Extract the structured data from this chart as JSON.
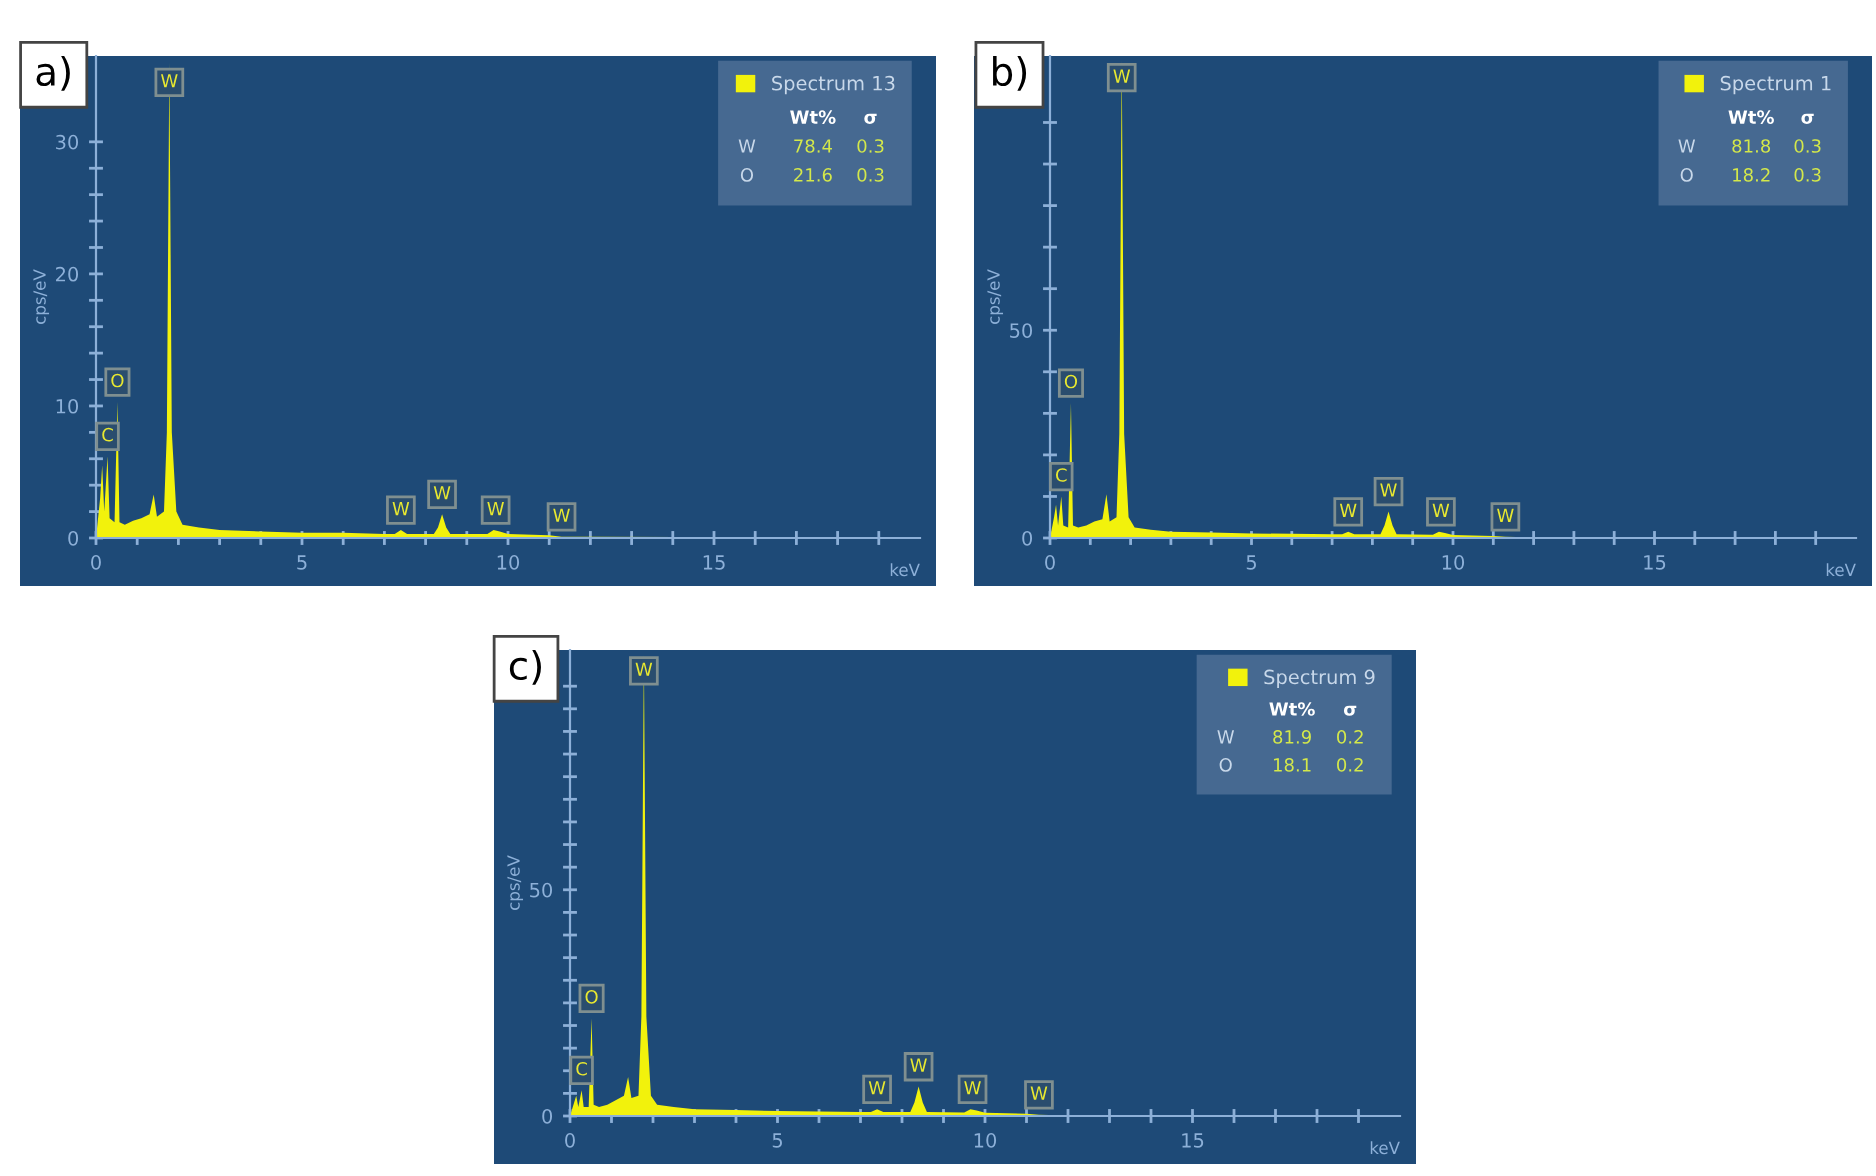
{
  "chart_data": [
    {
      "type": "area",
      "title": "a)",
      "xlabel": "keV",
      "ylabel": "cps/eV",
      "xlim": [
        0,
        20
      ],
      "ylim": [
        0,
        36.5
      ],
      "legend": "top right",
      "tick_labels": "xy",
      "xticks": [
        0,
        {
          "value": 1,
          "label": null
        },
        {
          "value": 2,
          "label": null
        },
        {
          "value": 3,
          "label": null
        },
        {
          "value": 4,
          "label": null
        },
        5,
        {
          "value": 6,
          "label": null
        },
        {
          "value": 7,
          "label": null
        },
        {
          "value": 8,
          "label": null
        },
        {
          "value": 9,
          "label": null
        },
        10,
        {
          "value": 11,
          "label": null
        },
        {
          "value": 12,
          "label": null
        },
        {
          "value": 13,
          "label": null
        },
        {
          "value": 14,
          "label": null
        },
        15,
        {
          "value": 16,
          "label": null
        },
        {
          "value": 17,
          "label": null
        },
        {
          "value": 18,
          "label": null
        },
        {
          "value": 19,
          "label": null
        }
      ],
      "yticks": [
        0,
        {
          "value": 2,
          "label": null
        },
        {
          "value": 4,
          "label": null
        },
        {
          "value": 6,
          "label": null
        },
        {
          "value": 8,
          "label": null
        },
        10,
        {
          "value": 12,
          "label": null
        },
        {
          "value": 14,
          "label": null
        },
        {
          "value": 16,
          "label": null
        },
        {
          "value": 18,
          "label": null
        },
        20,
        {
          "value": 22,
          "label": null
        },
        {
          "value": 24,
          "label": null
        },
        {
          "value": 26,
          "label": null
        },
        {
          "value": 28,
          "label": null
        },
        30
      ],
      "series": [
        {
          "name": "Spectrum 13",
          "color": "#f2f20c",
          "x": [
            0,
            0.1,
            0.15,
            0.2,
            0.28,
            0.33,
            0.45,
            0.52,
            0.57,
            0.7,
            0.9,
            1.1,
            1.3,
            1.4,
            1.48,
            1.65,
            1.72,
            1.78,
            1.84,
            1.95,
            2.1,
            2.5,
            3,
            4,
            5,
            6,
            7,
            7.25,
            7.4,
            7.55,
            8.2,
            8.3,
            8.4,
            8.5,
            8.6,
            9.5,
            9.65,
            9.8,
            10,
            11,
            11.3,
            12,
            20
          ],
          "values": [
            0,
            3,
            5.5,
            2,
            6.2,
            1.5,
            1.2,
            10.3,
            1.2,
            1.0,
            1.3,
            1.5,
            1.8,
            3.3,
            1.6,
            2,
            8,
            36,
            8,
            2,
            1,
            0.8,
            0.6,
            0.5,
            0.4,
            0.4,
            0.3,
            0.3,
            0.6,
            0.3,
            0.3,
            0.8,
            1.8,
            0.8,
            0.3,
            0.3,
            0.6,
            0.5,
            0.3,
            0.2,
            0.1,
            0.1,
            0
          ]
        }
      ],
      "annotations": [
        "Wt%",
        "σ",
        "W",
        "78.4",
        "0.3",
        "O",
        "21.6",
        "0.3",
        {
          "text": "C",
          "x": 0.28,
          "y": 6.2
        },
        {
          "text": "O",
          "x": 0.52,
          "y": 10.3
        },
        {
          "text": "W",
          "x": 1.78,
          "y": 33
        },
        {
          "text": "W",
          "x": 7.4,
          "y": 0.6
        },
        {
          "text": "W",
          "x": 8.4,
          "y": 1.8
        },
        {
          "text": "W",
          "x": 9.7,
          "y": 0.6
        },
        {
          "text": "W",
          "x": 11.3,
          "y": 0.1
        }
      ]
    },
    {
      "type": "area",
      "title": "b)",
      "xlabel": "keV",
      "ylabel": "cps/eV",
      "xlim": [
        0,
        20
      ],
      "ylim": [
        0,
        116
      ],
      "legend": "top right",
      "tick_labels": "xy",
      "xticks": [
        0,
        {
          "value": 1,
          "label": null
        },
        {
          "value": 2,
          "label": null
        },
        {
          "value": 3,
          "label": null
        },
        {
          "value": 4,
          "label": null
        },
        5,
        {
          "value": 6,
          "label": null
        },
        {
          "value": 7,
          "label": null
        },
        {
          "value": 8,
          "label": null
        },
        {
          "value": 9,
          "label": null
        },
        10,
        {
          "value": 11,
          "label": null
        },
        {
          "value": 12,
          "label": null
        },
        {
          "value": 13,
          "label": null
        },
        {
          "value": 14,
          "label": null
        },
        15,
        {
          "value": 16,
          "label": null
        },
        {
          "value": 17,
          "label": null
        },
        {
          "value": 18,
          "label": null
        },
        {
          "value": 19,
          "label": null
        }
      ],
      "yticks": [
        0,
        {
          "value": 10,
          "label": null
        },
        {
          "value": 20,
          "label": null
        },
        {
          "value": 30,
          "label": null
        },
        {
          "value": 40,
          "label": null
        },
        50,
        {
          "value": 60,
          "label": null
        },
        {
          "value": 70,
          "label": null
        },
        {
          "value": 80,
          "label": null
        },
        {
          "value": 90,
          "label": null
        },
        {
          "value": 100,
          "label": null
        }
      ],
      "series": [
        {
          "name": "Spectrum 1",
          "color": "#f2f20c",
          "x": [
            0,
            0.1,
            0.15,
            0.2,
            0.28,
            0.33,
            0.45,
            0.52,
            0.57,
            0.7,
            0.9,
            1.1,
            1.3,
            1.4,
            1.48,
            1.65,
            1.72,
            1.78,
            1.84,
            1.95,
            2.1,
            2.5,
            3,
            4,
            5,
            6,
            7,
            7.25,
            7.4,
            7.55,
            8.2,
            8.3,
            8.4,
            8.5,
            8.6,
            9.5,
            9.65,
            9.8,
            10,
            11,
            11.3,
            12,
            20
          ],
          "values": [
            0,
            5,
            8,
            3,
            10,
            3,
            2.5,
            32.5,
            3,
            2.5,
            3,
            4,
            4.5,
            10.5,
            4,
            5,
            25,
            115,
            25,
            5,
            2.5,
            2,
            1.5,
            1.3,
            1.1,
            1,
            0.9,
            0.9,
            1.5,
            0.9,
            0.9,
            3,
            6.4,
            3,
            0.9,
            0.8,
            1.5,
            1.2,
            0.7,
            0.5,
            0.3,
            0.1,
            0
          ]
        }
      ],
      "annotations": [
        "Wt%",
        "σ",
        "W",
        "81.8",
        "0.3",
        "O",
        "18.2",
        "0.3",
        {
          "text": "C",
          "x": 0.28,
          "y": 10
        },
        {
          "text": "O",
          "x": 0.52,
          "y": 32.5
        },
        {
          "text": "W",
          "x": 1.78,
          "y": 106
        },
        {
          "text": "W",
          "x": 7.4,
          "y": 1.5
        },
        {
          "text": "W",
          "x": 8.4,
          "y": 6.4
        },
        {
          "text": "W",
          "x": 9.7,
          "y": 1.5
        },
        {
          "text": "W",
          "x": 11.3,
          "y": 0.3
        }
      ]
    },
    {
      "type": "area",
      "title": "c)",
      "xlabel": "keV",
      "ylabel": "cps/eV",
      "xlim": [
        0,
        20
      ],
      "ylim": [
        0,
        103
      ],
      "legend": "top right",
      "tick_labels": "xy",
      "xticks": [
        0,
        {
          "value": 1,
          "label": null
        },
        {
          "value": 2,
          "label": null
        },
        {
          "value": 3,
          "label": null
        },
        {
          "value": 4,
          "label": null
        },
        5,
        {
          "value": 6,
          "label": null
        },
        {
          "value": 7,
          "label": null
        },
        {
          "value": 8,
          "label": null
        },
        {
          "value": 9,
          "label": null
        },
        10,
        {
          "value": 11,
          "label": null
        },
        {
          "value": 12,
          "label": null
        },
        {
          "value": 13,
          "label": null
        },
        {
          "value": 14,
          "label": null
        },
        15,
        {
          "value": 16,
          "label": null
        },
        {
          "value": 17,
          "label": null
        },
        {
          "value": 18,
          "label": null
        },
        {
          "value": 19,
          "label": null
        }
      ],
      "yticks": [
        0,
        {
          "value": 5,
          "label": null
        },
        {
          "value": 10,
          "label": null
        },
        {
          "value": 15,
          "label": null
        },
        {
          "value": 20,
          "label": null
        },
        {
          "value": 25,
          "label": null
        },
        {
          "value": 30,
          "label": null
        },
        {
          "value": 35,
          "label": null
        },
        {
          "value": 40,
          "label": null
        },
        {
          "value": 45,
          "label": null
        },
        50,
        {
          "value": 55,
          "label": null
        },
        {
          "value": 60,
          "label": null
        },
        {
          "value": 65,
          "label": null
        },
        {
          "value": 70,
          "label": null
        },
        {
          "value": 75,
          "label": null
        },
        {
          "value": 80,
          "label": null
        },
        {
          "value": 85,
          "label": null
        },
        {
          "value": 90,
          "label": null
        },
        {
          "value": 95,
          "label": null
        }
      ],
      "series": [
        {
          "name": "Spectrum 9",
          "color": "#f2f20c",
          "x": [
            0,
            0.1,
            0.15,
            0.2,
            0.28,
            0.33,
            0.45,
            0.52,
            0.57,
            0.7,
            0.9,
            1.1,
            1.3,
            1.4,
            1.48,
            1.65,
            1.72,
            1.78,
            1.84,
            1.95,
            2.1,
            2.5,
            3,
            4,
            5,
            6,
            7,
            7.25,
            7.4,
            7.55,
            8.2,
            8.3,
            8.4,
            8.5,
            8.6,
            9.5,
            9.65,
            9.8,
            10,
            11,
            11.3,
            12,
            20
          ],
          "values": [
            0,
            3,
            4.5,
            2,
            5.7,
            2,
            2,
            21.6,
            2.5,
            2,
            2.5,
            3.5,
            4.5,
            8.6,
            4,
            4.5,
            22,
            102,
            22,
            4.5,
            2.5,
            2,
            1.5,
            1.3,
            1.1,
            1,
            0.9,
            0.9,
            1.5,
            0.9,
            0.9,
            3,
            6.5,
            3,
            0.9,
            0.8,
            1.5,
            1.2,
            0.7,
            0.5,
            0.3,
            0.1,
            0
          ]
        }
      ],
      "annotations": [
        "Wt%",
        "σ",
        "W",
        "81.9",
        "0.2",
        "O",
        "18.1",
        "0.2",
        {
          "text": "C",
          "x": 0.28,
          "y": 5.7
        },
        {
          "text": "O",
          "x": 0.52,
          "y": 21.6
        },
        {
          "text": "W",
          "x": 1.78,
          "y": 94
        },
        {
          "text": "W",
          "x": 7.4,
          "y": 1.5
        },
        {
          "text": "W",
          "x": 8.4,
          "y": 6.5
        },
        {
          "text": "W",
          "x": 9.7,
          "y": 1.5
        },
        {
          "text": "W",
          "x": 11.3,
          "y": 0.3
        }
      ]
    }
  ]
}
